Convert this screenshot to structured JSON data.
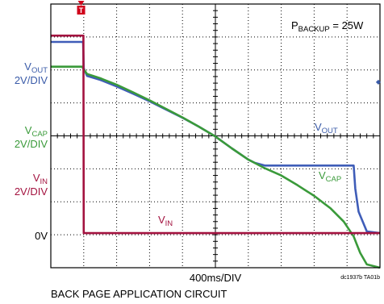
{
  "chart_data": {
    "type": "line",
    "title": "",
    "divisions": {
      "x": 10,
      "y": 8
    },
    "xlabel": "400ms/DIV",
    "x_unit_per_div_ms": 400,
    "xlim_ms": [
      0,
      4000
    ],
    "annotation_power": {
      "main": "P",
      "sub": "BACKUP",
      "rest": " = 25W"
    },
    "trigger_marker": {
      "glyph": "T",
      "color": "#d0021b",
      "x_div": 0.92
    },
    "ground_marker_glyph": "◆",
    "channel_labels": [
      {
        "id": "vout",
        "main": "V",
        "sub": "OUT",
        "scale": "2V/DIV",
        "color": "#3a5ba8"
      },
      {
        "id": "vcap",
        "main": "V",
        "sub": "CAP",
        "scale": "2V/DIV",
        "color": "#3a9a3a"
      },
      {
        "id": "vin",
        "main": "V",
        "sub": "IN",
        "scale": "2V/DIV",
        "color": "#a3123f"
      }
    ],
    "zero_label": "0V",
    "series": [
      {
        "name": "VOUT",
        "color": "#3f5db8",
        "points_div": [
          [
            0,
            1.15
          ],
          [
            0.95,
            1.15
          ],
          [
            0.98,
            1.15
          ],
          [
            1.0,
            1.95
          ],
          [
            1.1,
            2.18
          ],
          [
            1.5,
            2.3
          ],
          [
            2.0,
            2.5
          ],
          [
            2.5,
            2.72
          ],
          [
            3.0,
            2.95
          ],
          [
            3.5,
            3.2
          ],
          [
            4.0,
            3.45
          ],
          [
            4.5,
            3.72
          ],
          [
            5.0,
            4.02
          ],
          [
            5.5,
            4.38
          ],
          [
            6.0,
            4.72
          ],
          [
            6.2,
            4.82
          ],
          [
            6.5,
            4.9
          ],
          [
            7.0,
            4.9
          ],
          [
            8.0,
            4.9
          ],
          [
            9.0,
            4.9
          ],
          [
            9.2,
            4.9
          ],
          [
            9.25,
            5.6
          ],
          [
            9.35,
            6.3
          ],
          [
            9.6,
            6.9
          ],
          [
            10.0,
            6.95
          ]
        ]
      },
      {
        "name": "VCAP",
        "color": "#3a9a3a",
        "points_div": [
          [
            0,
            1.9
          ],
          [
            0.95,
            1.9
          ],
          [
            1.0,
            1.98
          ],
          [
            1.1,
            2.12
          ],
          [
            1.5,
            2.25
          ],
          [
            2.0,
            2.45
          ],
          [
            2.5,
            2.68
          ],
          [
            3.0,
            2.92
          ],
          [
            3.5,
            3.18
          ],
          [
            4.0,
            3.44
          ],
          [
            4.5,
            3.72
          ],
          [
            5.0,
            4.02
          ],
          [
            5.5,
            4.38
          ],
          [
            6.0,
            4.72
          ],
          [
            6.5,
            4.98
          ],
          [
            7.0,
            5.2
          ],
          [
            7.5,
            5.5
          ],
          [
            8.0,
            5.82
          ],
          [
            8.5,
            6.2
          ],
          [
            8.9,
            6.6
          ],
          [
            9.2,
            7.05
          ],
          [
            9.3,
            7.3
          ],
          [
            9.4,
            7.55
          ],
          [
            9.6,
            7.9
          ],
          [
            10.0,
            8.0
          ]
        ]
      },
      {
        "name": "VIN",
        "color": "#a3123f",
        "points_div": [
          [
            0,
            0.96
          ],
          [
            0.97,
            0.96
          ],
          [
            0.99,
            0.96
          ],
          [
            1.0,
            6.95
          ],
          [
            1.05,
            6.95
          ],
          [
            10.0,
            6.95
          ]
        ]
      }
    ],
    "series_labels": [
      {
        "main": "V",
        "sub": "OUT",
        "color": "#3a5ba8"
      },
      {
        "main": "V",
        "sub": "CAP",
        "color": "#3a9a3a"
      },
      {
        "main": "V",
        "sub": "IN",
        "color": "#a3123f"
      }
    ],
    "figure_id": "dc1937b TA01b",
    "caption": "BACK PAGE APPLICATION CIRCUIT"
  }
}
